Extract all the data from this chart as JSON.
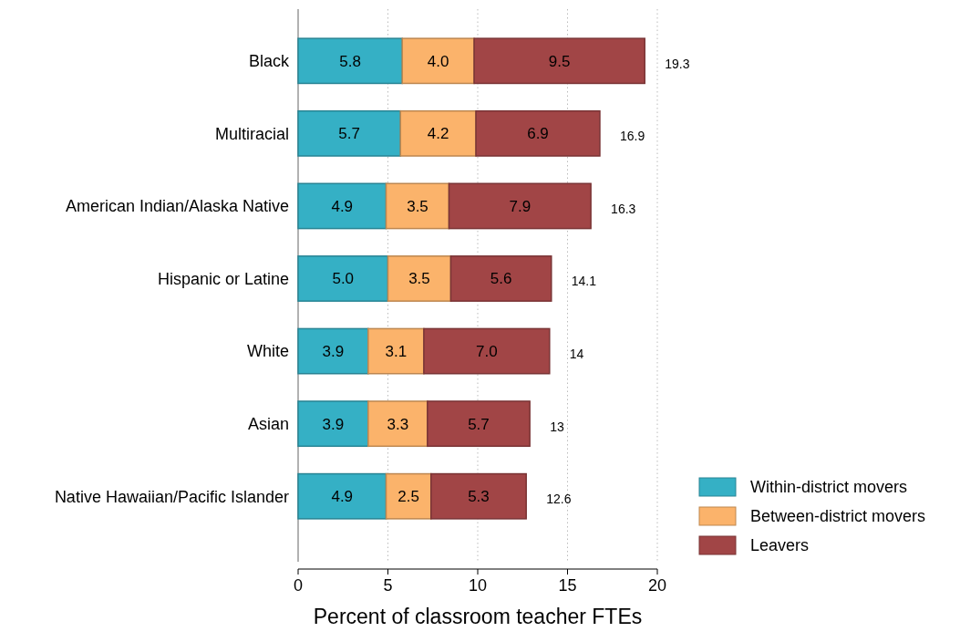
{
  "chart_data": {
    "type": "bar",
    "orientation": "horizontal",
    "stacked": true,
    "xlabel": "Percent of classroom teacher FTEs",
    "categories": [
      "Black",
      "Multiracial",
      "American Indian/Alaska Native",
      "Hispanic or Latine",
      "White",
      "Asian",
      "Native Hawaiian/Pacific Islander"
    ],
    "series": [
      {
        "name": "Within-district movers",
        "color": "#35b0c5",
        "values": [
          5.8,
          5.7,
          4.9,
          5.0,
          3.9,
          3.9,
          4.9
        ],
        "value_labels": [
          "5.8",
          "5.7",
          "4.9",
          "5.0",
          "3.9",
          "3.9",
          "4.9"
        ]
      },
      {
        "name": "Between-district movers",
        "color": "#fbb36b",
        "values": [
          4.0,
          4.2,
          3.5,
          3.5,
          3.1,
          3.3,
          2.5
        ],
        "value_labels": [
          "4.0",
          "4.2",
          "3.5",
          "3.5",
          "3.1",
          "3.3",
          "2.5"
        ]
      },
      {
        "name": "Leavers",
        "color": "#a14546",
        "values": [
          9.5,
          6.9,
          7.9,
          5.6,
          7.0,
          5.7,
          5.3
        ],
        "value_labels": [
          "9.5",
          "6.9",
          "7.9",
          "5.6",
          "7.0",
          "5.7",
          "5.3"
        ]
      }
    ],
    "totals": [
      "19.3",
      "16.9",
      "16.3",
      "14.1",
      "14",
      "13",
      "12.6"
    ],
    "xlim": [
      0,
      20
    ],
    "xticks": [
      0,
      5,
      10,
      15,
      20
    ],
    "grid": "x",
    "legend": "bottom right"
  }
}
